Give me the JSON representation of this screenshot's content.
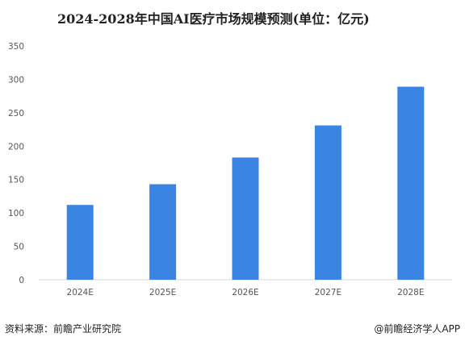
{
  "chart_data": {
    "type": "bar",
    "title": "2024-2028年中国AI医疗市场规模预测(单位：亿元)",
    "categories": [
      "2024E",
      "2025E",
      "2026E",
      "2027E",
      "2028E"
    ],
    "values": [
      112,
      143,
      183,
      231,
      289
    ],
    "ylim": [
      0,
      350
    ],
    "yticks": [
      0,
      50,
      100,
      150,
      200,
      250,
      300,
      350
    ],
    "grid": false,
    "legend": "none",
    "bar_color": "#3a84e4"
  },
  "footer": {
    "source": "资料来源：前瞻产业研究院",
    "credit": "@前瞻经济学人APP"
  }
}
